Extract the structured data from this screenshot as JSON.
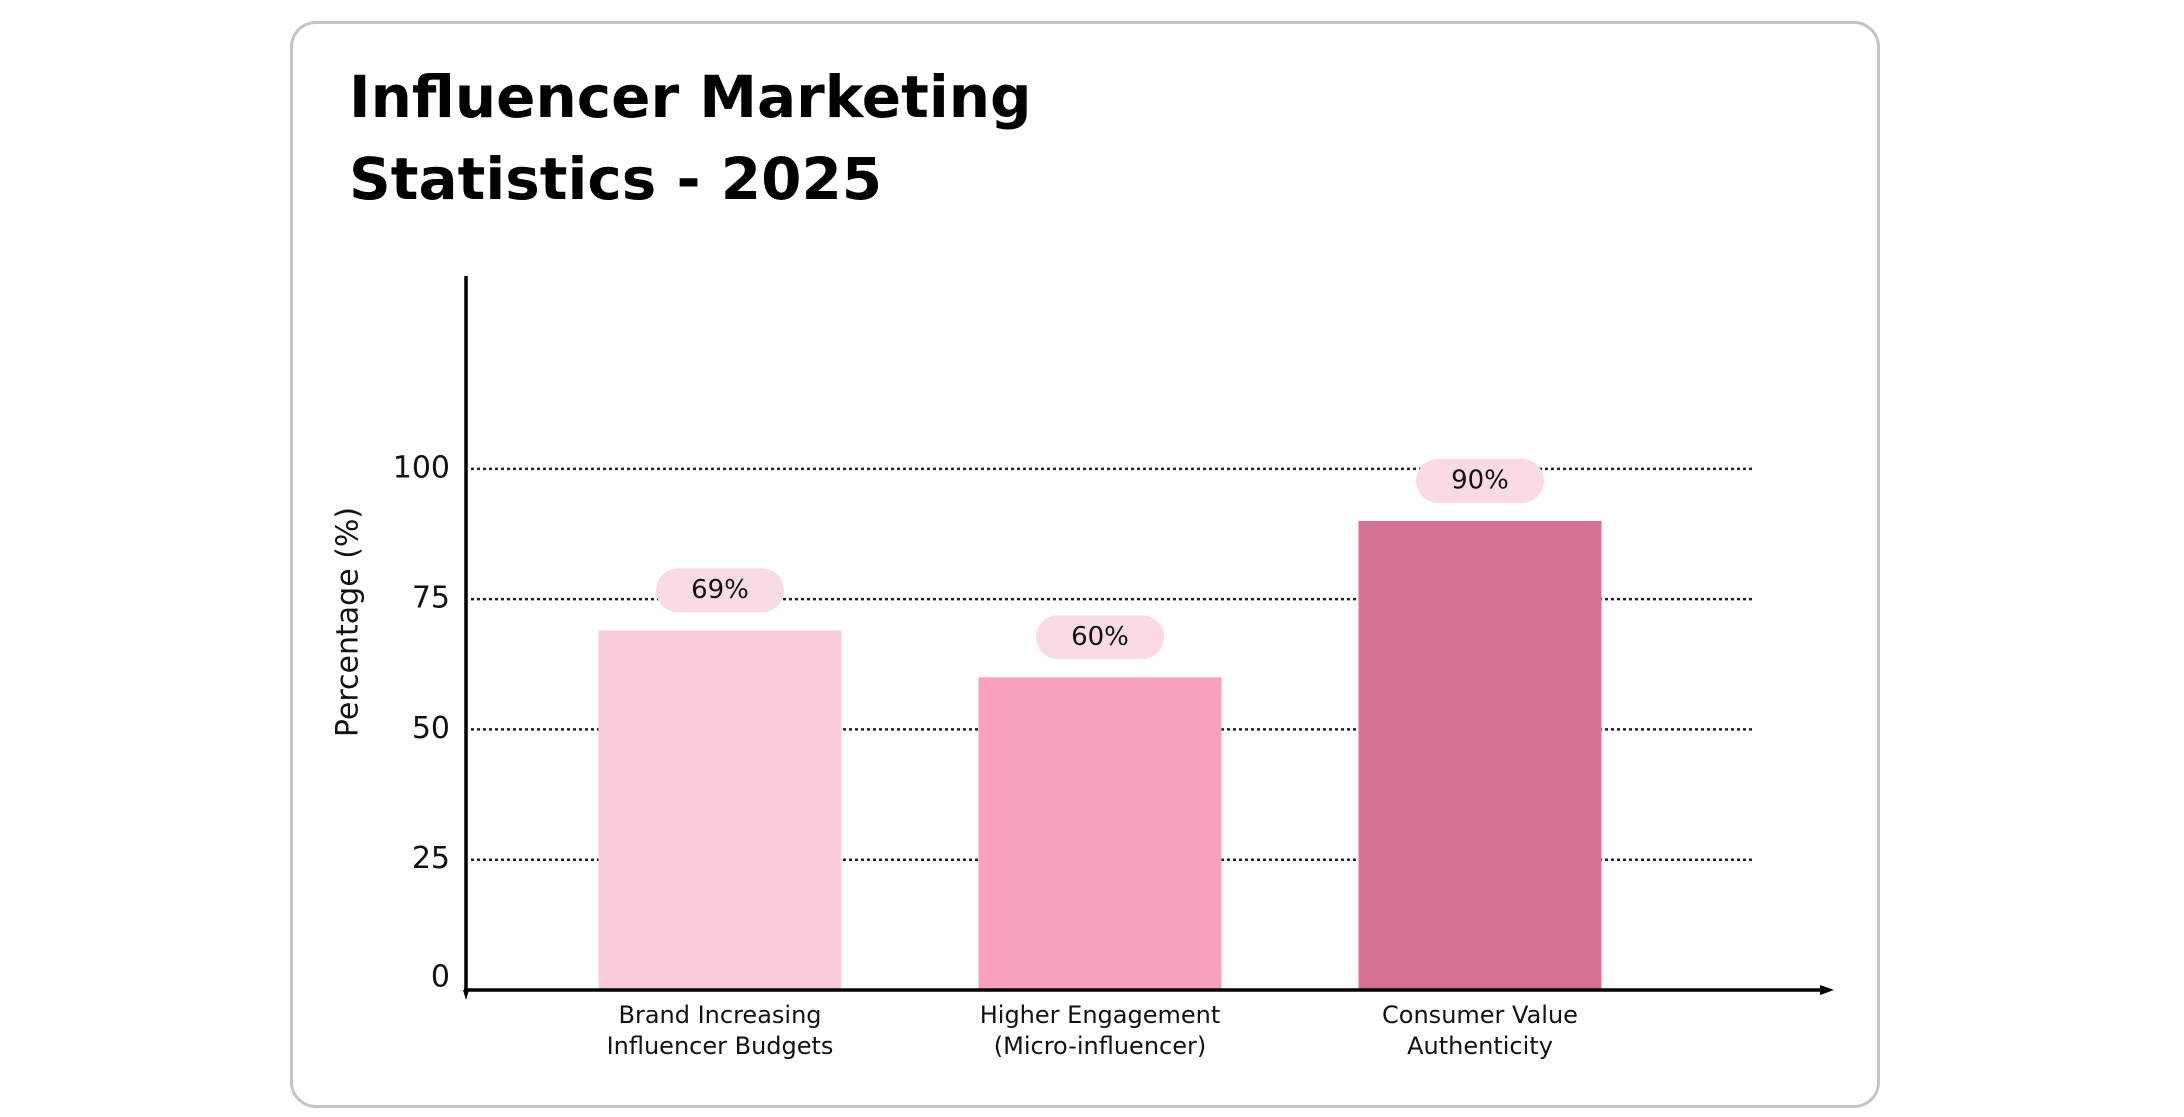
{
  "chart_data": {
    "type": "bar",
    "title": "Influencer Marketing Statistics - 2025",
    "y_label": "Percentage (%)",
    "categories": [
      "Brand Increasing Influencer Budgets",
      "Higher Engagement (Micro-influencer)",
      "Consumer Value Authenticity"
    ],
    "values": [
      69,
      60,
      90
    ],
    "value_labels": [
      "69%",
      "60%",
      "90%"
    ],
    "colors": [
      "#facbd9",
      "#f7a1be",
      "#d47293"
    ],
    "ylim": [
      0,
      137
    ],
    "yticks": [
      0,
      25,
      50,
      75,
      100
    ],
    "grid": true
  }
}
